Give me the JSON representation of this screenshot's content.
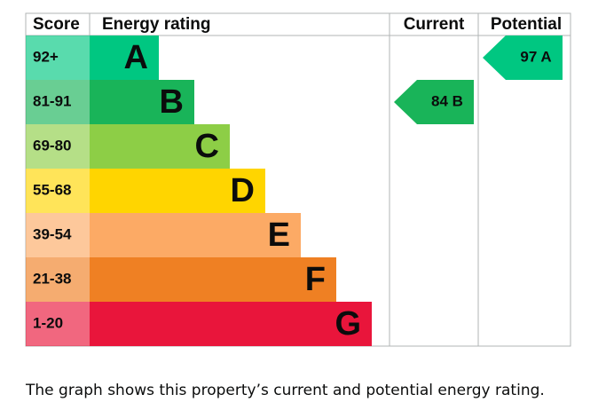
{
  "chart_data": {
    "type": "epc",
    "headers": [
      "Score",
      "Energy rating",
      "Current",
      "Potential"
    ],
    "bands": [
      {
        "score": "92+",
        "letter": "A",
        "color": "#00c781"
      },
      {
        "score": "81-91",
        "letter": "B",
        "color": "#19b459"
      },
      {
        "score": "69-80",
        "letter": "C",
        "color": "#8dce46"
      },
      {
        "score": "55-68",
        "letter": "D",
        "color": "#ffd500"
      },
      {
        "score": "39-54",
        "letter": "E",
        "color": "#fcaa65"
      },
      {
        "score": "21-38",
        "letter": "F",
        "color": "#ef8023"
      },
      {
        "score": "1-20",
        "letter": "G",
        "color": "#e9153b"
      }
    ],
    "current": {
      "value": 84,
      "label": "84 B"
    },
    "potential": {
      "value": 97,
      "label": "97 A"
    },
    "caption": "The graph shows this property’s current and potential energy rating."
  }
}
